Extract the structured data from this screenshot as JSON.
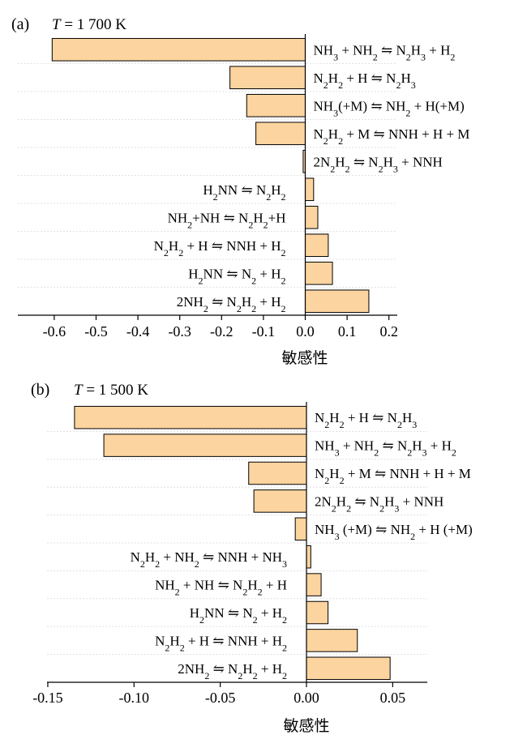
{
  "chart_data": [
    {
      "type": "bar",
      "orientation": "horizontal",
      "panel": "(a)",
      "temp_var": "T",
      "temp_value": " = 1 700 K",
      "xlabel": "敏感性",
      "xlim": [
        -0.68,
        0.2
      ],
      "xticks": [
        -0.6,
        -0.5,
        -0.4,
        -0.3,
        -0.2,
        -0.1,
        0.0,
        0.1,
        0.2
      ],
      "xtick_labels": [
        "-0.6",
        "-0.5",
        "-0.4",
        "-0.3",
        "-0.2",
        "-0.1",
        "0.0",
        "0.1",
        "0.2"
      ],
      "categories": [
        "NH₃ + NH₂ ⇋ N₂H₃ + H₂",
        "N₂H₂ + H ⇋ N₂H₃",
        "NH₃(+M) ⇋ NH₂ + H(+M)",
        "N₂H₂ + M ⇋ NNH + H + M",
        "2N₂H₂ ⇋ N₂H₃ + NNH",
        "H₂NN ⇋ N₂H₂",
        "NH₂+NH ⇋ N₂H₂+H",
        "N₂H₂ + H ⇋ NNH + H₂",
        "H₂NN ⇋ N₂ + H₂",
        "2NH₂ ⇋ N₂H₂ + H₂"
      ],
      "values": [
        -0.605,
        -0.18,
        -0.14,
        -0.118,
        -0.005,
        0.02,
        0.03,
        0.055,
        0.065,
        0.152
      ]
    },
    {
      "type": "bar",
      "orientation": "horizontal",
      "panel": "(b)",
      "temp_var": "T",
      "temp_value": " = 1 500 K",
      "xlabel": "敏感性",
      "xlim": [
        -0.15,
        0.07
      ],
      "xticks": [
        -0.15,
        -0.1,
        -0.05,
        0.0,
        0.05
      ],
      "xtick_labels": [
        "-0.15",
        "-0.10",
        "-0.05",
        "0.00",
        "0.05"
      ],
      "categories": [
        "N₂H₂ + H ⇋ N₂H₃",
        "NH₃ + NH₂ ⇋ N₂H₃ + H₂",
        "N₂H₂ + M ⇋ NNH + H + M",
        "2N₂H₂ ⇋ N₂H₃ + NNH",
        "NH₃ (+M) ⇋ NH₂ + H (+M)",
        "N₂H₂ + NH₂ ⇋ NNH + NH₃",
        "NH₂ + NH ⇋ N₂H₂ + H",
        "H₂NN ⇋ N₂ + H₂",
        "N₂H₂ + H ⇋ NNH + H₂",
        "2NH₂ ⇋ N₂H₂ + H₂"
      ],
      "values": [
        -0.1345,
        -0.1175,
        -0.0335,
        -0.0305,
        -0.0065,
        0.0025,
        0.0085,
        0.0125,
        0.0295,
        0.0485
      ]
    }
  ]
}
